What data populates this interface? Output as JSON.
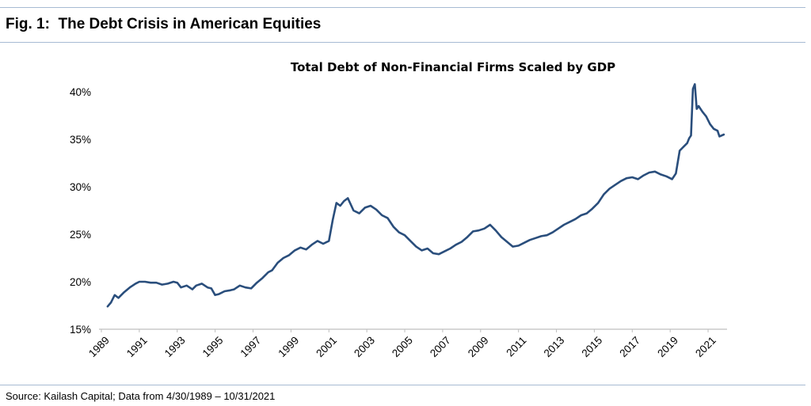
{
  "figure": {
    "title": "Fig. 1:  The Debt Crisis in American Equities",
    "source": "Source: Kailash Capital; Data from 4/30/1989 – 10/31/2021"
  },
  "colors": {
    "line": "#2a4e7c",
    "rule": "#a7bbd3",
    "axis": "#bfbfbf"
  },
  "chart_data": {
    "type": "line",
    "title": "Total Debt of Non-Financial Firms Scaled by GDP",
    "xlabel": "",
    "ylabel": "",
    "xlim": [
      1989,
      2022
    ],
    "ylim": [
      15,
      40
    ],
    "y_ticks": [
      "15%",
      "20%",
      "25%",
      "30%",
      "35%",
      "40%"
    ],
    "x_ticks": [
      "1989",
      "1991",
      "1993",
      "1995",
      "1997",
      "1999",
      "2001",
      "2003",
      "2005",
      "2007",
      "2009",
      "2011",
      "2013",
      "2015",
      "2017",
      "2019",
      "2021"
    ],
    "grid": false,
    "legend": "none",
    "series": [
      {
        "x": [
          1989.33,
          1989.5,
          1989.7,
          1989.9,
          1990.2,
          1990.5,
          1990.8,
          1991.0,
          1991.3,
          1991.6,
          1991.9,
          1992.2,
          1992.5,
          1992.8,
          1993.0,
          1993.2,
          1993.5,
          1993.8,
          1994.0,
          1994.3,
          1994.6,
          1994.8,
          1995.0,
          1995.2,
          1995.5,
          1995.8,
          1996.0,
          1996.3,
          1996.6,
          1996.9,
          1997.2,
          1997.5,
          1997.8,
          1998.0,
          1998.3,
          1998.6,
          1998.9,
          1999.2,
          1999.5,
          1999.8,
          2000.1,
          2000.4,
          2000.7,
          2001.0,
          2001.2,
          2001.4,
          2001.6,
          2001.8,
          2002.0,
          2002.3,
          2002.6,
          2002.9,
          2003.2,
          2003.5,
          2003.8,
          2004.1,
          2004.4,
          2004.7,
          2005.0,
          2005.3,
          2005.6,
          2005.9,
          2006.2,
          2006.5,
          2006.8,
          2007.1,
          2007.4,
          2007.7,
          2008.0,
          2008.3,
          2008.6,
          2008.9,
          2009.2,
          2009.5,
          2009.8,
          2010.1,
          2010.4,
          2010.7,
          2011.0,
          2011.3,
          2011.6,
          2011.9,
          2012.2,
          2012.5,
          2012.8,
          2013.1,
          2013.4,
          2013.7,
          2014.0,
          2014.3,
          2014.6,
          2014.9,
          2015.2,
          2015.5,
          2015.8,
          2016.1,
          2016.4,
          2016.7,
          2017.0,
          2017.3,
          2017.6,
          2017.9,
          2018.2,
          2018.5,
          2018.8,
          2019.0,
          2019.1,
          2019.3,
          2019.5,
          2019.7,
          2019.9,
          2020.0,
          2020.1,
          2020.2,
          2020.3,
          2020.4,
          2020.5,
          2020.7,
          2020.9,
          2021.1,
          2021.3,
          2021.5,
          2021.6,
          2021.83
        ],
        "values": [
          17.4,
          17.8,
          18.6,
          18.3,
          18.9,
          19.4,
          19.8,
          20.0,
          20.0,
          19.9,
          19.9,
          19.7,
          19.8,
          20.0,
          19.9,
          19.4,
          19.6,
          19.2,
          19.6,
          19.8,
          19.4,
          19.3,
          18.6,
          18.7,
          19.0,
          19.1,
          19.2,
          19.6,
          19.4,
          19.3,
          19.9,
          20.4,
          21.0,
          21.2,
          22.0,
          22.5,
          22.8,
          23.3,
          23.6,
          23.4,
          23.9,
          24.3,
          24.0,
          24.3,
          26.5,
          28.3,
          28.0,
          28.5,
          28.8,
          27.5,
          27.2,
          27.8,
          28.0,
          27.6,
          27.0,
          26.7,
          25.8,
          25.2,
          24.9,
          24.3,
          23.7,
          23.3,
          23.5,
          23.0,
          22.9,
          23.2,
          23.5,
          23.9,
          24.2,
          24.7,
          25.3,
          25.4,
          25.6,
          26.0,
          25.4,
          24.7,
          24.2,
          23.7,
          23.8,
          24.1,
          24.4,
          24.6,
          24.8,
          24.9,
          25.2,
          25.6,
          26.0,
          26.3,
          26.6,
          27.0,
          27.2,
          27.7,
          28.3,
          29.2,
          29.8,
          30.2,
          30.6,
          30.9,
          31.0,
          30.8,
          31.2,
          31.5,
          31.6,
          31.3,
          31.1,
          30.9,
          30.8,
          31.4,
          33.8,
          34.2,
          34.6,
          35.1,
          35.4,
          40.3,
          40.8,
          38.2,
          38.5,
          37.9,
          37.4,
          36.6,
          36.1,
          35.9,
          35.3,
          35.5
        ]
      }
    ]
  }
}
